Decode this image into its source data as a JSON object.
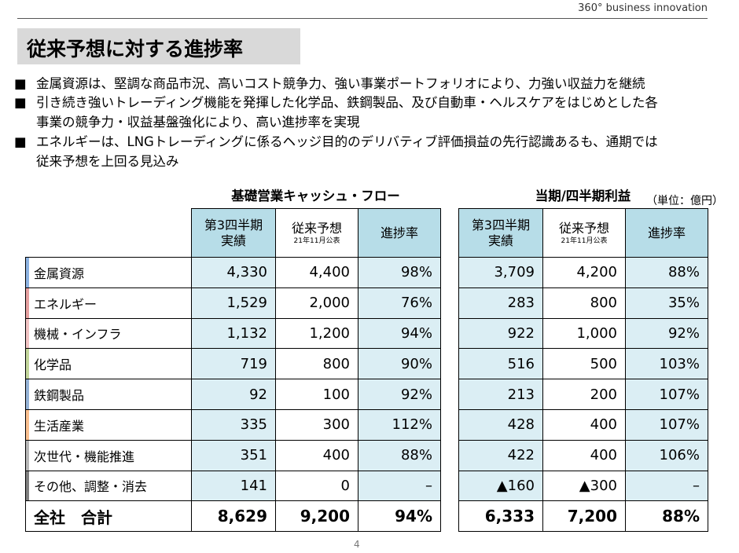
{
  "header": {
    "brand": "360° business innovation",
    "title": "従来予想に対する進捗率"
  },
  "bullets": [
    "金属資源は、堅調な商品市況、高いコスト競争力、強い事業ポートフォリオにより、力強い収益力を継続",
    "引き続き強いトレーディング機能を発揮した化学品、鉄鋼製品、及び自動車・ヘルスケアをはじめとした各\n事業の競争力・収益基盤強化により、高い進捗率を実現",
    "エネルギーは、LNGトレーディングに係るヘッジ目的のデリバティブ評価損益の先行認識あるも、通期では\n従来予想を上回る見込み"
  ],
  "table": {
    "unit": "（単位：億円）",
    "groups": [
      {
        "title": "基礎営業キャッシュ・フロー",
        "columns": [
          {
            "label": "第3四半期\n実績"
          },
          {
            "label": "従来予想",
            "note": "21年11月公表"
          },
          {
            "label": "進捗率"
          }
        ]
      },
      {
        "title": "当期/四半期利益",
        "columns": [
          {
            "label": "第3四半期\n実績"
          },
          {
            "label": "従来予想",
            "note": "21年11月公表"
          },
          {
            "label": "進捗率"
          }
        ]
      }
    ],
    "rows": [
      {
        "label": "金属資源",
        "values": [
          "4,330",
          "4,400",
          "98%",
          "3,709",
          "4,200",
          "88%"
        ]
      },
      {
        "label": "エネルギー",
        "values": [
          "1,529",
          "2,000",
          "76%",
          "283",
          "800",
          "35%"
        ]
      },
      {
        "label": "機械・インフラ",
        "values": [
          "1,132",
          "1,200",
          "94%",
          "922",
          "1,000",
          "92%"
        ]
      },
      {
        "label": "化学品",
        "values": [
          "719",
          "800",
          "90%",
          "516",
          "500",
          "103%"
        ]
      },
      {
        "label": "鉄鋼製品",
        "values": [
          "92",
          "100",
          "92%",
          "213",
          "200",
          "107%"
        ]
      },
      {
        "label": "生活産業",
        "values": [
          "335",
          "300",
          "112%",
          "428",
          "400",
          "107%"
        ]
      },
      {
        "label": "次世代・機能推進",
        "values": [
          "351",
          "400",
          "88%",
          "422",
          "400",
          "106%"
        ]
      },
      {
        "label": "その他、調整・消去",
        "values": [
          "141",
          "0",
          "–",
          "▲160",
          "▲300",
          "–"
        ]
      },
      {
        "label": "全社　合計",
        "values": [
          "8,629",
          "9,200",
          "94%",
          "6,333",
          "7,200",
          "88%"
        ]
      }
    ]
  },
  "footer": {
    "page": "4"
  }
}
